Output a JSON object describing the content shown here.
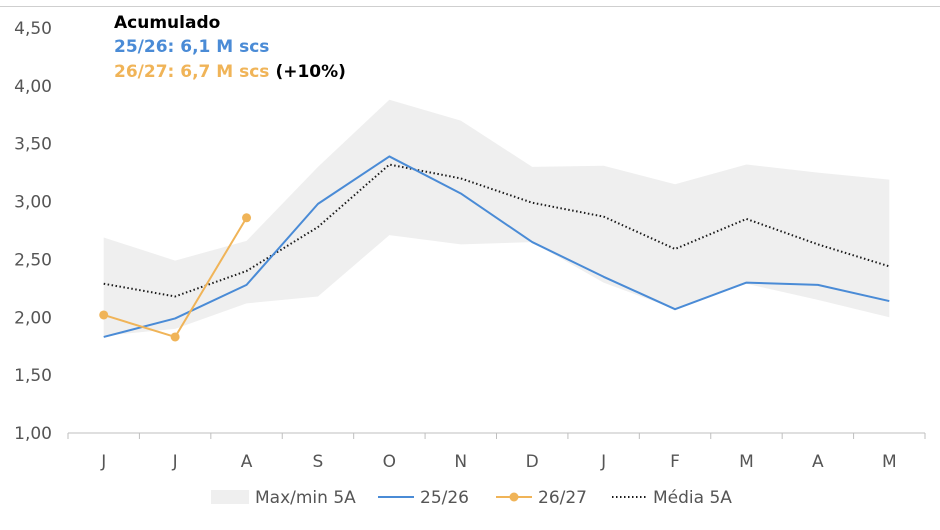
{
  "chart_data": {
    "type": "line",
    "categories": [
      "J",
      "J",
      "A",
      "S",
      "O",
      "N",
      "D",
      "J",
      "F",
      "M",
      "A",
      "M"
    ],
    "ylim": [
      1.0,
      4.5
    ],
    "yticks": [
      "1,00",
      "1,50",
      "2,00",
      "2,50",
      "3,00",
      "3,50",
      "4,00",
      "4,50"
    ],
    "ytick_values": [
      1.0,
      1.5,
      2.0,
      2.5,
      3.0,
      3.5,
      4.0,
      4.5
    ],
    "band": {
      "name": "Max/min 5A",
      "max": [
        2.69,
        2.49,
        2.66,
        3.3,
        3.88,
        3.7,
        3.3,
        3.31,
        3.15,
        3.32,
        3.25,
        3.19
      ],
      "min": [
        1.84,
        1.9,
        2.12,
        2.18,
        2.71,
        2.63,
        2.65,
        2.3,
        2.07,
        2.29,
        2.15,
        2.0
      ],
      "color": "#efefef"
    },
    "series": [
      {
        "name": "25/26",
        "color": "#4a8bd6",
        "style": "solid",
        "values": [
          1.83,
          1.99,
          2.28,
          2.98,
          3.39,
          3.07,
          2.65,
          2.35,
          2.07,
          2.3,
          2.28,
          2.14
        ]
      },
      {
        "name": "26/27",
        "color": "#f0b458",
        "style": "solid-markers",
        "values": [
          2.02,
          1.83,
          2.86,
          null,
          null,
          null,
          null,
          null,
          null,
          null,
          null,
          null
        ]
      },
      {
        "name": "Média 5A",
        "color": "#1a1a1a",
        "style": "dotted",
        "values": [
          2.29,
          2.18,
          2.4,
          2.78,
          3.32,
          3.2,
          2.99,
          2.87,
          2.59,
          2.85,
          2.63,
          2.44
        ]
      }
    ],
    "legend_placement": "bottom-center",
    "grid": false,
    "annotations": {
      "title": "Acumulado",
      "line1": "25/26: 6,1 M scs",
      "line2": "26/27: 6,7 M scs",
      "line2_suffix": "(+10%)"
    }
  }
}
